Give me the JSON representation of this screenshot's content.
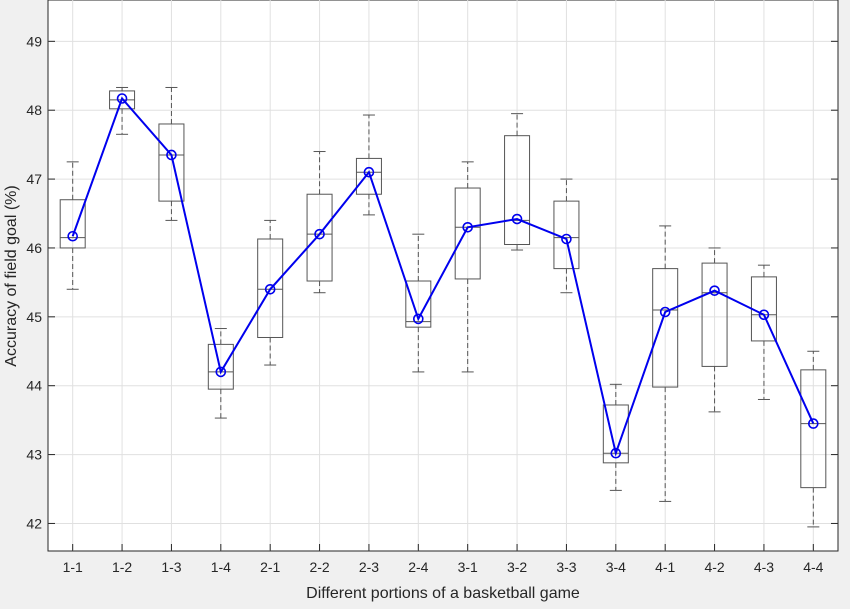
{
  "chart_data": {
    "type": "box",
    "xlabel": "Different portions of a basketball game",
    "ylabel": "Accuracy of field goal (%)",
    "ylim": [
      41.6,
      49.6
    ],
    "yticks": [
      42,
      43,
      44,
      45,
      46,
      47,
      48,
      49
    ],
    "grid": true,
    "categories": [
      "1-1",
      "1-2",
      "1-3",
      "1-4",
      "2-1",
      "2-2",
      "2-3",
      "2-4",
      "3-1",
      "3-2",
      "3-3",
      "3-4",
      "4-1",
      "4-2",
      "4-3",
      "4-4"
    ],
    "boxes": [
      {
        "min": 45.4,
        "q1": 46.0,
        "median": 46.15,
        "q3": 46.7,
        "max": 47.25
      },
      {
        "min": 47.65,
        "q1": 48.02,
        "median": 48.15,
        "q3": 48.28,
        "max": 48.33
      },
      {
        "min": 46.4,
        "q1": 46.68,
        "median": 47.35,
        "q3": 47.8,
        "max": 48.33
      },
      {
        "min": 43.53,
        "q1": 43.95,
        "median": 44.2,
        "q3": 44.6,
        "max": 44.83
      },
      {
        "min": 44.3,
        "q1": 44.7,
        "median": 45.4,
        "q3": 46.13,
        "max": 46.4
      },
      {
        "min": 45.35,
        "q1": 45.52,
        "median": 46.2,
        "q3": 46.78,
        "max": 47.4
      },
      {
        "min": 46.48,
        "q1": 46.78,
        "median": 47.1,
        "q3": 47.3,
        "max": 47.93
      },
      {
        "min": 44.2,
        "q1": 44.85,
        "median": 44.93,
        "q3": 45.52,
        "max": 46.2
      },
      {
        "min": 44.2,
        "q1": 45.55,
        "median": 46.3,
        "q3": 46.87,
        "max": 47.25
      },
      {
        "min": 45.97,
        "q1": 46.05,
        "median": 46.4,
        "q3": 47.63,
        "max": 47.95
      },
      {
        "min": 45.35,
        "q1": 45.7,
        "median": 46.15,
        "q3": 46.68,
        "max": 47.0
      },
      {
        "min": 42.48,
        "q1": 42.88,
        "median": 43.02,
        "q3": 43.72,
        "max": 44.02
      },
      {
        "min": 42.32,
        "q1": 43.98,
        "median": 45.1,
        "q3": 45.7,
        "max": 46.32
      },
      {
        "min": 43.62,
        "q1": 44.28,
        "median": 45.35,
        "q3": 45.78,
        "max": 46.0
      },
      {
        "min": 43.8,
        "q1": 44.65,
        "median": 45.03,
        "q3": 45.58,
        "max": 45.75
      },
      {
        "min": 41.95,
        "q1": 42.52,
        "median": 43.45,
        "q3": 44.23,
        "max": 44.5
      }
    ],
    "series": [
      {
        "type": "line",
        "color": "#0000ee",
        "marker": "circle",
        "values": [
          46.17,
          48.17,
          47.35,
          44.2,
          45.4,
          46.2,
          47.1,
          44.97,
          46.3,
          46.42,
          46.13,
          43.02,
          45.07,
          45.38,
          45.03,
          43.45
        ]
      }
    ],
    "colors": {
      "box": "#555555",
      "median": "#555555",
      "line": "#0000ee",
      "grid": "#e0e0e0",
      "plot_bg": "#ffffff"
    }
  }
}
